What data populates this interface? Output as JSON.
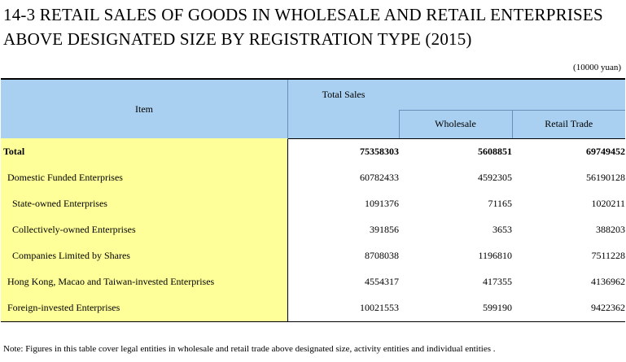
{
  "title": {
    "line1": "14-3  RETAIL SALES OF GOODS IN WHOLESALE AND RETAIL ENTERPRISES",
    "line2": "ABOVE DESIGNATED SIZE BY REGISTRATION TYPE (2015)"
  },
  "unit": "(10000 yuan)",
  "table": {
    "headers": {
      "item": "Item",
      "total_sales": "Total Sales",
      "wholesale": "Wholesale",
      "retail_trade": "Retail Trade"
    },
    "rows": [
      {
        "label": "Total",
        "total_sales": "75358303",
        "wholesale": "5608851",
        "retail_trade": "69749452"
      },
      {
        "label": "Domestic Funded Enterprises",
        "total_sales": "60782433",
        "wholesale": "4592305",
        "retail_trade": "56190128"
      },
      {
        "label": "State-owned Enterprises",
        "total_sales": "1091376",
        "wholesale": "71165",
        "retail_trade": "1020211"
      },
      {
        "label": "Collectively-owned Enterprises",
        "total_sales": "391856",
        "wholesale": "3653",
        "retail_trade": "388203"
      },
      {
        "label": "Companies Limited by Shares",
        "total_sales": "8708038",
        "wholesale": "1196810",
        "retail_trade": "7511228"
      },
      {
        "label": "Hong Kong, Macao and Taiwan-invested Enterprises",
        "total_sales": "4554317",
        "wholesale": "417355",
        "retail_trade": "4136962"
      },
      {
        "label": "Foreign-invested Enterprises",
        "total_sales": "10021553",
        "wholesale": "599190",
        "retail_trade": "9422362"
      }
    ]
  },
  "note": "Note: Figures in this table cover legal entities in wholesale and retail trade above designated size, activity entities and individual entities ."
}
